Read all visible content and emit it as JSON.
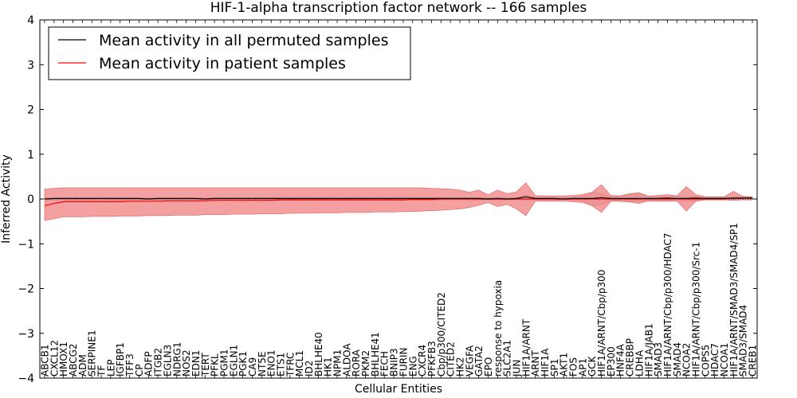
{
  "chart_data": {
    "type": "line",
    "title": "HIF-1-alpha transcription factor network -- 166 samples",
    "xlabel": "Cellular Entities",
    "ylabel": "Inferred Activity",
    "ylim": [
      -4,
      4
    ],
    "yticks": [
      -4,
      -3,
      -2,
      -1,
      0,
      1,
      2,
      3,
      4
    ],
    "ytick_labels": [
      "−4",
      "−3",
      "−2",
      "−1",
      "0",
      "1",
      "2",
      "3",
      "4"
    ],
    "grid": false,
    "legend_position": "top-left",
    "categories": [
      "ABCB1",
      "CXCL12",
      "HMOX1",
      "ABCG2",
      "ADM",
      "SERPINE1",
      "TF",
      "LEP",
      "IGFBP1",
      "TFF3",
      "CP",
      "ADFP",
      "ITGB2",
      "EGLN3",
      "NDRG1",
      "NOS2",
      "EDN1",
      "TERT",
      "PFKL",
      "PGM1",
      "EGLN1",
      "PGK1",
      "CA9",
      "NT5E",
      "ENO1",
      "ETS1",
      "TFRC",
      "MCL1",
      "ID2",
      "BHLHE40",
      "HK1",
      "NPM1",
      "ALDOA",
      "RORA",
      "PKM2",
      "BHLHE41",
      "FECH",
      "BNIP3",
      "FURIN",
      "ENG",
      "CXCR4",
      "PFKFB3",
      "Cbp/p300/CITED2",
      "CITED2",
      "HK2",
      "VEGFA",
      "GATA2",
      "EPO",
      "response to hypoxia",
      "SLC2A1",
      "JUN",
      "HIF1A/ARNT",
      "ARNT",
      "HIF1A",
      "SP1",
      "AKT1",
      "FOS",
      "AP1",
      "GCK",
      "HIF1A/ARNT/Cbp/p300",
      "EP300",
      "HNF4A",
      "CREBBP",
      "LDHA",
      "HIF1A/JAB1",
      "SMAD3",
      "HIF1A/ARNT/Cbp/p300/HDAC7",
      "SMAD4",
      "NCOA2",
      "HIF1A/ARNT/Cbp/p300/Src-1",
      "COPS5",
      "HDAC7",
      "NCOA1",
      "HIF1A/ARNT/SMAD3/SMAD4/SP1",
      "SMAD3/SMAD4",
      "CREB1"
    ],
    "series": [
      {
        "name": "Mean activity in all permuted samples",
        "color": "#000000",
        "values": [
          0.0,
          0.01,
          0.01,
          0.01,
          0.01,
          0.01,
          0.01,
          0.01,
          0.01,
          0.01,
          0.01,
          0.0,
          0.01,
          0.01,
          0.01,
          0.01,
          0.01,
          0.0,
          0.01,
          0.01,
          0.01,
          0.01,
          0.01,
          0.01,
          0.01,
          0.01,
          0.01,
          0.01,
          0.01,
          0.01,
          0.01,
          0.01,
          0.01,
          0.01,
          0.01,
          0.01,
          0.01,
          0.01,
          0.01,
          0.01,
          0.01,
          0.01,
          0.01,
          0.01,
          0.01,
          0.01,
          0.01,
          0.0,
          0.01,
          0.0,
          0.01,
          0.05,
          0.01,
          0.01,
          0.01,
          0.0,
          0.01,
          0.01,
          0.01,
          0.03,
          0.01,
          0.01,
          0.01,
          0.01,
          0.01,
          0.01,
          0.02,
          0.01,
          0.01,
          0.02,
          0.01,
          0.01,
          0.01,
          0.02,
          0.02,
          0.02
        ],
        "band_lower": [
          -0.02,
          -0.02,
          -0.02,
          -0.02,
          -0.02,
          -0.02,
          -0.02,
          -0.02,
          -0.02,
          -0.02,
          -0.02,
          -0.02,
          -0.02,
          -0.02,
          -0.02,
          -0.02,
          -0.02,
          -0.02,
          -0.02,
          -0.02,
          -0.02,
          -0.02,
          -0.02,
          -0.02,
          -0.02,
          -0.02,
          -0.02,
          -0.02,
          -0.02,
          -0.02,
          -0.02,
          -0.02,
          -0.02,
          -0.02,
          -0.02,
          -0.02,
          -0.02,
          -0.02,
          -0.02,
          -0.02,
          -0.02,
          -0.02,
          -0.02,
          -0.02,
          -0.02,
          -0.02,
          -0.02,
          -0.02,
          -0.02,
          -0.02,
          -0.02,
          -0.02,
          -0.02,
          -0.02,
          -0.02,
          -0.02,
          -0.02,
          -0.04,
          -0.15,
          -0.12,
          -0.04,
          -0.04,
          -0.05,
          -0.05,
          -0.04,
          -0.04,
          -0.05,
          -0.04,
          -0.04,
          -0.05,
          -0.02,
          -0.02,
          -0.02,
          -0.02,
          -0.02,
          -0.02
        ],
        "band_upper": [
          0.03,
          0.03,
          0.03,
          0.03,
          0.03,
          0.03,
          0.03,
          0.03,
          0.03,
          0.03,
          0.03,
          0.03,
          0.03,
          0.03,
          0.03,
          0.03,
          0.03,
          0.03,
          0.03,
          0.03,
          0.03,
          0.03,
          0.03,
          0.03,
          0.03,
          0.03,
          0.03,
          0.03,
          0.03,
          0.03,
          0.03,
          0.03,
          0.03,
          0.03,
          0.03,
          0.03,
          0.03,
          0.03,
          0.03,
          0.03,
          0.03,
          0.03,
          0.03,
          0.03,
          0.03,
          0.03,
          0.03,
          0.03,
          0.03,
          0.03,
          0.03,
          0.08,
          0.04,
          0.04,
          0.04,
          0.04,
          0.04,
          0.06,
          0.15,
          0.12,
          0.05,
          0.06,
          0.1,
          0.14,
          0.06,
          0.05,
          0.06,
          0.05,
          0.05,
          0.06,
          0.04,
          0.04,
          0.04,
          0.04,
          0.04,
          0.04
        ]
      },
      {
        "name": "Mean activity in patient samples",
        "color": "#ff0000",
        "fill_color": "#f08080",
        "values": [
          -0.15,
          -0.1,
          -0.06,
          -0.06,
          -0.06,
          -0.06,
          -0.06,
          -0.06,
          -0.06,
          -0.05,
          -0.05,
          -0.05,
          -0.05,
          -0.04,
          -0.04,
          -0.04,
          -0.04,
          -0.04,
          -0.03,
          -0.03,
          -0.03,
          -0.03,
          -0.03,
          -0.03,
          -0.03,
          -0.02,
          -0.02,
          -0.02,
          -0.02,
          -0.02,
          -0.02,
          -0.02,
          -0.02,
          -0.02,
          -0.02,
          -0.02,
          -0.02,
          -0.02,
          -0.02,
          -0.01,
          -0.01,
          -0.01,
          0.0,
          0.0,
          0.0,
          0.0,
          0.0,
          0.0,
          0.0,
          0.0,
          0.0,
          0.0,
          0.0,
          0.0,
          0.0,
          0.0,
          0.0,
          0.0,
          0.0,
          0.0,
          0.0,
          0.0,
          0.0,
          0.0,
          0.0,
          0.0,
          0.0,
          0.0,
          0.0,
          0.0,
          0.0,
          0.0,
          0.0,
          0.02,
          0.02,
          0.02
        ],
        "band_lower": [
          -0.48,
          -0.44,
          -0.4,
          -0.4,
          -0.4,
          -0.39,
          -0.39,
          -0.39,
          -0.38,
          -0.38,
          -0.38,
          -0.37,
          -0.37,
          -0.37,
          -0.36,
          -0.36,
          -0.36,
          -0.35,
          -0.35,
          -0.35,
          -0.34,
          -0.34,
          -0.34,
          -0.33,
          -0.33,
          -0.33,
          -0.32,
          -0.32,
          -0.32,
          -0.31,
          -0.31,
          -0.31,
          -0.3,
          -0.3,
          -0.3,
          -0.29,
          -0.29,
          -0.29,
          -0.28,
          -0.28,
          -0.27,
          -0.26,
          -0.25,
          -0.24,
          -0.22,
          -0.19,
          -0.14,
          -0.08,
          -0.17,
          -0.12,
          -0.22,
          -0.37,
          -0.05,
          -0.05,
          -0.05,
          -0.05,
          -0.06,
          -0.08,
          -0.15,
          -0.3,
          -0.05,
          -0.05,
          -0.07,
          -0.1,
          -0.04,
          -0.05,
          -0.05,
          -0.04,
          -0.27,
          -0.05,
          -0.02,
          -0.02,
          -0.02,
          -0.03,
          -0.02,
          -0.02
        ],
        "band_upper": [
          0.22,
          0.24,
          0.25,
          0.25,
          0.25,
          0.25,
          0.25,
          0.25,
          0.25,
          0.25,
          0.25,
          0.25,
          0.25,
          0.25,
          0.25,
          0.25,
          0.25,
          0.25,
          0.25,
          0.25,
          0.25,
          0.25,
          0.25,
          0.25,
          0.25,
          0.25,
          0.25,
          0.25,
          0.25,
          0.25,
          0.25,
          0.25,
          0.25,
          0.25,
          0.25,
          0.25,
          0.25,
          0.25,
          0.25,
          0.25,
          0.25,
          0.24,
          0.23,
          0.22,
          0.2,
          0.15,
          0.2,
          0.09,
          0.2,
          0.12,
          0.16,
          0.36,
          0.08,
          0.07,
          0.07,
          0.07,
          0.08,
          0.1,
          0.15,
          0.32,
          0.08,
          0.07,
          0.12,
          0.14,
          0.06,
          0.08,
          0.1,
          0.07,
          0.28,
          0.1,
          0.05,
          0.05,
          0.05,
          0.17,
          0.06,
          0.05
        ]
      }
    ]
  }
}
